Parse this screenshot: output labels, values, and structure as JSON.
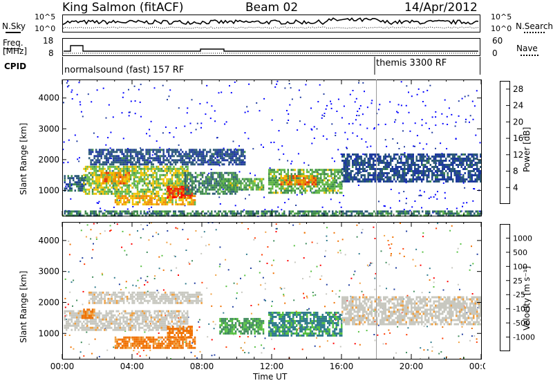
{
  "header": {
    "station": "King Salmon (fitACF)",
    "beam": "Beam 02",
    "date": "14/Apr/2012"
  },
  "status_panels": {
    "nsky_label": "N.Sky",
    "nsearch_label": "N.Search",
    "noise_left_ticks": [
      "10^5",
      "10^0"
    ],
    "noise_right_ticks": [
      "10^5",
      "10^0"
    ],
    "freq_label": "Freq.",
    "freq_unit": "[MHz]",
    "freq_ticks": [
      "18",
      "8"
    ],
    "nave_label": "Nave",
    "nave_ticks": [
      "60",
      "0"
    ],
    "cpid_label": "CPID",
    "cpid_programs": [
      {
        "name": "normalsound (fast) 157 RF",
        "start_hour": 0
      },
      {
        "name": "themis 3300 RF",
        "start_hour": 18
      }
    ]
  },
  "chart_data": [
    {
      "type": "heatmap",
      "name": "power",
      "ylabel": "Slant Range [km]",
      "xlabel": "Time UT",
      "xlim_hours": [
        0,
        24
      ],
      "ylim_km": [
        180,
        4600
      ],
      "x_tick_labels": [
        "00:00",
        "04:00",
        "08:00",
        "12:00",
        "16:00",
        "20:00",
        "00:00"
      ],
      "y_tick_labels": [
        "1000",
        "2000",
        "3000",
        "4000"
      ],
      "colorbar": {
        "label": "Power [dB]",
        "tick_labels": [
          "4",
          "8",
          "12",
          "16",
          "20",
          "24",
          "28"
        ],
        "range": [
          0,
          30
        ],
        "colors": [
          "#0000ff",
          "#1e3a9e",
          "#2c5a78",
          "#3f8a4e",
          "#62b848",
          "#f2c200",
          "#f08a00",
          "#e83010",
          "#ff0000"
        ]
      },
      "regions": [
        {
          "t": [
            0.1,
            1.3
          ],
          "r": [
            1000,
            1500
          ],
          "v": 8
        },
        {
          "t": [
            1.2,
            7.2
          ],
          "r": [
            900,
            1800
          ],
          "v": 16
        },
        {
          "t": [
            2.2,
            3.8
          ],
          "r": [
            1200,
            1600
          ],
          "v": 22
        },
        {
          "t": [
            3.0,
            7.6
          ],
          "r": [
            550,
            850
          ],
          "v": 20
        },
        {
          "t": [
            6.0,
            7.4
          ],
          "r": [
            800,
            1150
          ],
          "v": 26
        },
        {
          "t": [
            7.0,
            10.0
          ],
          "r": [
            900,
            1600
          ],
          "v": 10
        },
        {
          "t": [
            1.5,
            10.5
          ],
          "r": [
            1850,
            2350
          ],
          "v": 6
        },
        {
          "t": [
            9.0,
            11.5
          ],
          "r": [
            1000,
            1400
          ],
          "v": 14
        },
        {
          "t": [
            11.8,
            16.0
          ],
          "r": [
            950,
            1700
          ],
          "v": 14
        },
        {
          "t": [
            12.5,
            14.5
          ],
          "r": [
            1200,
            1500
          ],
          "v": 22
        },
        {
          "t": [
            16.0,
            24.0
          ],
          "r": [
            1300,
            2200
          ],
          "v": 6
        },
        {
          "t": [
            0.0,
            24.0
          ],
          "r": [
            200,
            350
          ],
          "v": 10
        }
      ]
    },
    {
      "type": "heatmap",
      "name": "velocity",
      "ylabel": "Slant Range [km]",
      "xlabel": "Time UT",
      "xlim_hours": [
        0,
        24
      ],
      "ylim_km": [
        180,
        4600
      ],
      "x_tick_labels": [
        "00:00",
        "04:00",
        "08:00",
        "12:00",
        "16:00",
        "20:00",
        "00:00"
      ],
      "y_tick_labels": [
        "1000",
        "2000",
        "3000",
        "4000"
      ],
      "colorbar": {
        "label": "Velocity [m s⁻¹]",
        "tick_labels": [
          "1000",
          "500",
          "100",
          "25",
          "-25",
          "-100",
          "-500",
          "-1000"
        ],
        "colors": [
          "#1e3ca0",
          "#2e7a8c",
          "#3d8a5a",
          "#55c040",
          "#c8c8c0",
          "#f0a040",
          "#f07000",
          "#ff3a00",
          "#ff0000"
        ]
      },
      "regions": [
        {
          "t": [
            0.1,
            7.2
          ],
          "r": [
            1100,
            1750
          ],
          "v": "ground"
        },
        {
          "t": [
            1.5,
            8.0
          ],
          "r": [
            1950,
            2350
          ],
          "v": "ground"
        },
        {
          "t": [
            1.1,
            1.8
          ],
          "r": [
            1500,
            1800
          ],
          "v": "-500"
        },
        {
          "t": [
            3.0,
            7.6
          ],
          "r": [
            550,
            900
          ],
          "v": "-500"
        },
        {
          "t": [
            6.0,
            7.4
          ],
          "r": [
            900,
            1250
          ],
          "v": "-500"
        },
        {
          "t": [
            9.0,
            11.5
          ],
          "r": [
            1000,
            1500
          ],
          "v": "100"
        },
        {
          "t": [
            11.8,
            16.0
          ],
          "r": [
            950,
            1700
          ],
          "v": "500"
        },
        {
          "t": [
            16.0,
            24.0
          ],
          "r": [
            1300,
            2200
          ],
          "v": "ground"
        }
      ]
    }
  ]
}
